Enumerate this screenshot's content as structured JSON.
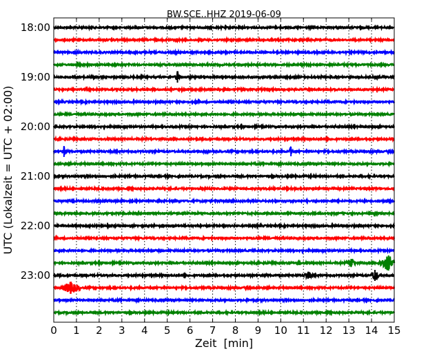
{
  "chart_data": {
    "type": "line",
    "title": "BW.SCE..HHZ 2019-06-09",
    "xlabel": "Zeit  [min]",
    "ylabel": "UTC (Lokalzeit = UTC + 02:00)",
    "xlim": [
      0,
      15
    ],
    "x_ticks": [
      "0",
      "1",
      "2",
      "3",
      "4",
      "5",
      "6",
      "7",
      "8",
      "9",
      "10",
      "11",
      "12",
      "13",
      "14",
      "15"
    ],
    "y_tick_labels": [
      "18:00",
      "19:00",
      "20:00",
      "21:00",
      "22:00",
      "23:00"
    ],
    "grid": "vertical dotted",
    "trace_interval_min": 15,
    "color_cycle": [
      "#000000",
      "#ff0000",
      "#0000ff",
      "#008000"
    ],
    "traces": [
      "18:00",
      "18:15",
      "18:30",
      "18:45",
      "19:00",
      "19:15",
      "19:30",
      "19:45",
      "20:00",
      "20:15",
      "20:30",
      "20:45",
      "21:00",
      "21:15",
      "21:30",
      "21:45",
      "22:00",
      "22:15",
      "22:30",
      "22:45",
      "23:00",
      "23:15",
      "23:30",
      "23:45"
    ],
    "events": [
      {
        "trace": "19:00",
        "minute": 5.45,
        "amplitude": 8,
        "duration_min": 0.1
      },
      {
        "trace": "20:30",
        "minute": 0.45,
        "amplitude": 8,
        "duration_min": 0.08
      },
      {
        "trace": "20:30",
        "minute": 10.45,
        "amplitude": 7,
        "duration_min": 0.08
      },
      {
        "trace": "22:45",
        "minute": 10.8,
        "amplitude": 3,
        "duration_min": 0.1
      },
      {
        "trace": "22:45",
        "minute": 13.1,
        "amplitude": 6,
        "duration_min": 0.25
      },
      {
        "trace": "22:45",
        "minute": 14.75,
        "amplitude": 11,
        "duration_min": 0.5
      },
      {
        "trace": "23:00",
        "minute": 11.2,
        "amplitude": 5,
        "duration_min": 0.2
      },
      {
        "trace": "23:00",
        "minute": 14.15,
        "amplitude": 8,
        "duration_min": 0.2
      },
      {
        "trace": "23:15",
        "minute": 0.75,
        "amplitude": 8,
        "duration_min": 0.5
      }
    ]
  }
}
